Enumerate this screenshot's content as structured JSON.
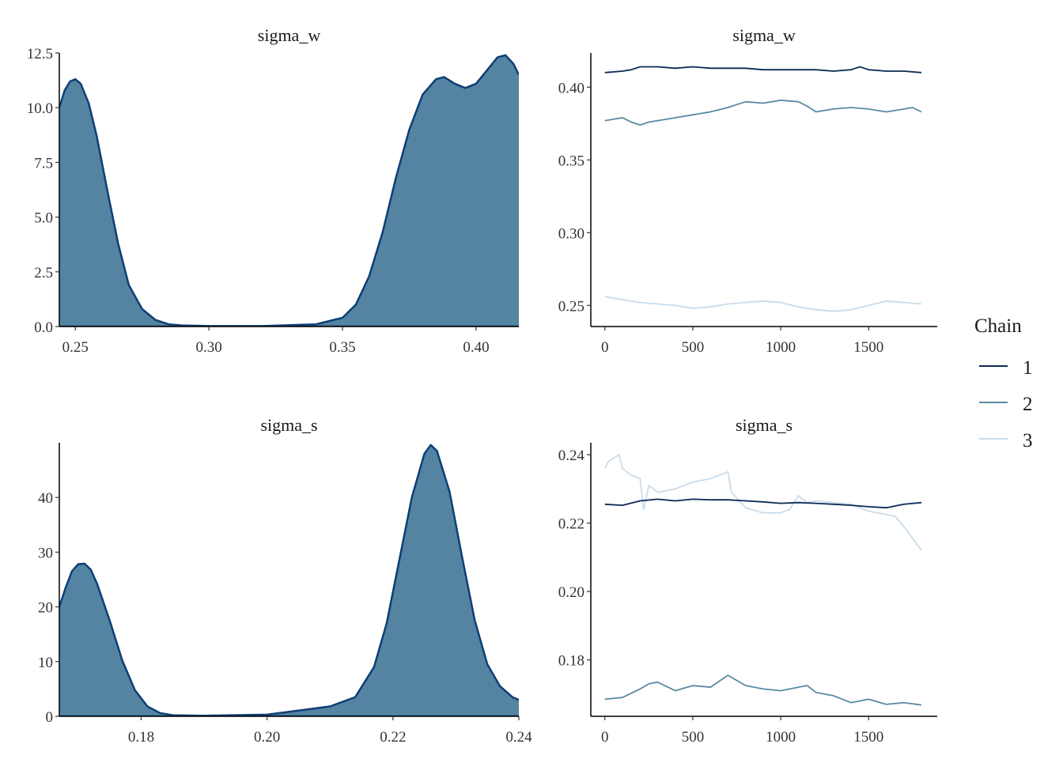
{
  "colors": {
    "chain1": "#0b2a55",
    "chain2": "#5a8aa3",
    "chain3": "#c9dceb",
    "density_fill": "#5484a2",
    "density_line": "#0e3e75",
    "axis": "#000000"
  },
  "legend": {
    "title": "Chain",
    "items": [
      {
        "label": "1",
        "color": "#0b2a55"
      },
      {
        "label": "2",
        "color": "#5a8aa3"
      },
      {
        "label": "3",
        "color": "#c9dceb"
      }
    ]
  },
  "chart_data": [
    {
      "type": "area",
      "title": "sigma_w",
      "xlim": [
        0.244,
        0.416
      ],
      "ylim": [
        0,
        12.5
      ],
      "xticks": [
        0.25,
        0.3,
        0.35,
        0.4
      ],
      "xtick_labels": [
        "0.25",
        "0.30",
        "0.35",
        "0.40"
      ],
      "yticks": [
        0,
        2.5,
        5,
        7.5,
        10,
        12.5
      ],
      "ytick_labels": [
        "0.0",
        "2.5",
        "5.0",
        "7.5",
        "10.0",
        "12.5"
      ],
      "x": [
        0.244,
        0.246,
        0.248,
        0.25,
        0.252,
        0.255,
        0.258,
        0.262,
        0.266,
        0.27,
        0.275,
        0.28,
        0.285,
        0.29,
        0.3,
        0.32,
        0.34,
        0.35,
        0.355,
        0.36,
        0.365,
        0.37,
        0.375,
        0.38,
        0.385,
        0.388,
        0.392,
        0.396,
        0.4,
        0.404,
        0.408,
        0.411,
        0.414,
        0.416
      ],
      "y": [
        10.0,
        10.8,
        11.2,
        11.3,
        11.1,
        10.2,
        8.7,
        6.2,
        3.8,
        1.9,
        0.8,
        0.3,
        0.1,
        0.05,
        0.02,
        0.02,
        0.1,
        0.4,
        1.0,
        2.3,
        4.3,
        6.8,
        9.0,
        10.6,
        11.3,
        11.4,
        11.1,
        10.9,
        11.1,
        11.7,
        12.3,
        12.4,
        12.0,
        11.5
      ]
    },
    {
      "type": "line",
      "title": "sigma_w",
      "xlim": [
        -80,
        1890
      ],
      "ylim": [
        0.2355,
        0.4235
      ],
      "xticks": [
        0,
        500,
        1000,
        1500
      ],
      "xtick_labels": [
        "0",
        "500",
        "1000",
        "1500"
      ],
      "yticks": [
        0.25,
        0.3,
        0.35,
        0.4
      ],
      "ytick_labels": [
        "0.25",
        "0.30",
        "0.35",
        "0.40"
      ],
      "series": [
        {
          "name": "1",
          "color": "#0b2a55",
          "x": [
            0,
            100,
            150,
            200,
            300,
            400,
            500,
            600,
            700,
            800,
            900,
            1000,
            1100,
            1200,
            1300,
            1400,
            1450,
            1500,
            1600,
            1700,
            1800
          ],
          "y": [
            0.41,
            0.411,
            0.412,
            0.414,
            0.414,
            0.413,
            0.414,
            0.413,
            0.413,
            0.413,
            0.412,
            0.412,
            0.412,
            0.412,
            0.411,
            0.412,
            0.414,
            0.412,
            0.411,
            0.411,
            0.41
          ]
        },
        {
          "name": "2",
          "color": "#5a8aa3",
          "x": [
            0,
            50,
            100,
            150,
            200,
            250,
            300,
            400,
            500,
            600,
            700,
            750,
            800,
            900,
            1000,
            1100,
            1150,
            1200,
            1300,
            1400,
            1500,
            1600,
            1700,
            1750,
            1800
          ],
          "y": [
            0.377,
            0.378,
            0.379,
            0.376,
            0.374,
            0.376,
            0.377,
            0.379,
            0.381,
            0.383,
            0.386,
            0.388,
            0.39,
            0.389,
            0.391,
            0.39,
            0.387,
            0.383,
            0.385,
            0.386,
            0.385,
            0.383,
            0.385,
            0.386,
            0.383
          ]
        },
        {
          "name": "3",
          "color": "#c9dceb",
          "x": [
            0,
            100,
            200,
            300,
            400,
            500,
            600,
            700,
            800,
            900,
            1000,
            1100,
            1200,
            1300,
            1400,
            1500,
            1600,
            1700,
            1800
          ],
          "y": [
            0.256,
            0.254,
            0.252,
            0.251,
            0.25,
            0.248,
            0.249,
            0.251,
            0.252,
            0.253,
            0.252,
            0.249,
            0.247,
            0.246,
            0.247,
            0.25,
            0.253,
            0.252,
            0.251
          ]
        }
      ]
    },
    {
      "type": "area",
      "title": "sigma_s",
      "xlim": [
        0.167,
        0.24
      ],
      "ylim": [
        0,
        50
      ],
      "xticks": [
        0.18,
        0.2,
        0.22,
        0.24
      ],
      "xtick_labels": [
        "0.18",
        "0.20",
        "0.22",
        "0.24"
      ],
      "yticks": [
        0,
        10,
        20,
        30,
        40
      ],
      "ytick_labels": [
        "0",
        "10",
        "20",
        "30",
        "40"
      ],
      "x": [
        0.167,
        0.168,
        0.169,
        0.17,
        0.171,
        0.172,
        0.173,
        0.175,
        0.177,
        0.179,
        0.181,
        0.183,
        0.185,
        0.19,
        0.2,
        0.21,
        0.214,
        0.217,
        0.219,
        0.221,
        0.223,
        0.225,
        0.226,
        0.227,
        0.229,
        0.231,
        0.233,
        0.235,
        0.237,
        0.239,
        0.24
      ],
      "y": [
        20,
        23.5,
        26.5,
        27.8,
        27.9,
        26.8,
        24.2,
        17.5,
        10.2,
        4.8,
        1.8,
        0.6,
        0.2,
        0.1,
        0.3,
        1.8,
        3.5,
        9.0,
        17.0,
        28.5,
        40.0,
        48.0,
        49.6,
        48.5,
        41.0,
        29.0,
        17.5,
        9.5,
        5.5,
        3.5,
        3.0
      ]
    },
    {
      "type": "line",
      "title": "sigma_s",
      "xlim": [
        -80,
        1890
      ],
      "ylim": [
        0.1635,
        0.2435
      ],
      "xticks": [
        0,
        500,
        1000,
        1500
      ],
      "xtick_labels": [
        "0",
        "500",
        "1000",
        "1500"
      ],
      "yticks": [
        0.18,
        0.2,
        0.22,
        0.24
      ],
      "ytick_labels": [
        "0.18",
        "0.20",
        "0.22",
        "0.24"
      ],
      "series": [
        {
          "name": "1",
          "color": "#0b2a55",
          "x": [
            0,
            100,
            200,
            300,
            400,
            500,
            600,
            700,
            800,
            900,
            1000,
            1100,
            1200,
            1300,
            1400,
            1500,
            1600,
            1700,
            1800
          ],
          "y": [
            0.2255,
            0.2252,
            0.2265,
            0.227,
            0.2265,
            0.227,
            0.2268,
            0.2268,
            0.2265,
            0.2262,
            0.2258,
            0.226,
            0.2258,
            0.2255,
            0.2252,
            0.2248,
            0.2245,
            0.2255,
            0.226
          ]
        },
        {
          "name": "2",
          "color": "#5a8aa3",
          "x": [
            0,
            100,
            200,
            250,
            300,
            400,
            500,
            600,
            700,
            750,
            800,
            900,
            1000,
            1100,
            1150,
            1200,
            1300,
            1400,
            1500,
            1600,
            1700,
            1800
          ],
          "y": [
            0.1685,
            0.169,
            0.1715,
            0.173,
            0.1735,
            0.171,
            0.1725,
            0.172,
            0.1755,
            0.174,
            0.1725,
            0.1715,
            0.171,
            0.172,
            0.1725,
            0.1705,
            0.1695,
            0.1675,
            0.1685,
            0.167,
            0.1675,
            0.1668
          ]
        },
        {
          "name": "3",
          "color": "#c9dceb",
          "x": [
            0,
            20,
            50,
            80,
            100,
            150,
            200,
            220,
            250,
            300,
            400,
            500,
            600,
            700,
            720,
            800,
            900,
            1000,
            1050,
            1100,
            1150,
            1200,
            1300,
            1400,
            1500,
            1600,
            1650,
            1700,
            1750,
            1800
          ],
          "y": [
            0.236,
            0.238,
            0.239,
            0.24,
            0.236,
            0.234,
            0.233,
            0.224,
            0.231,
            0.229,
            0.23,
            0.232,
            0.233,
            0.235,
            0.229,
            0.2245,
            0.223,
            0.223,
            0.224,
            0.228,
            0.226,
            0.2265,
            0.226,
            0.2255,
            0.2235,
            0.2225,
            0.222,
            0.219,
            0.2155,
            0.212
          ]
        }
      ]
    }
  ]
}
